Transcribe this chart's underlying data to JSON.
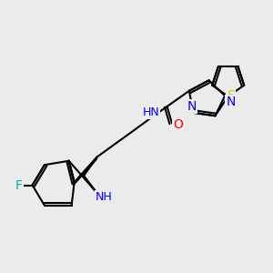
{
  "bg_color": "#ebebeb",
  "atom_colors": {
    "N": "#0000ff",
    "O": "#ff0000",
    "S": "#cccc00",
    "F": "#00aaaa",
    "C": "#000000",
    "H": "#000000"
  },
  "font_size": 9,
  "line_width": 1.5
}
